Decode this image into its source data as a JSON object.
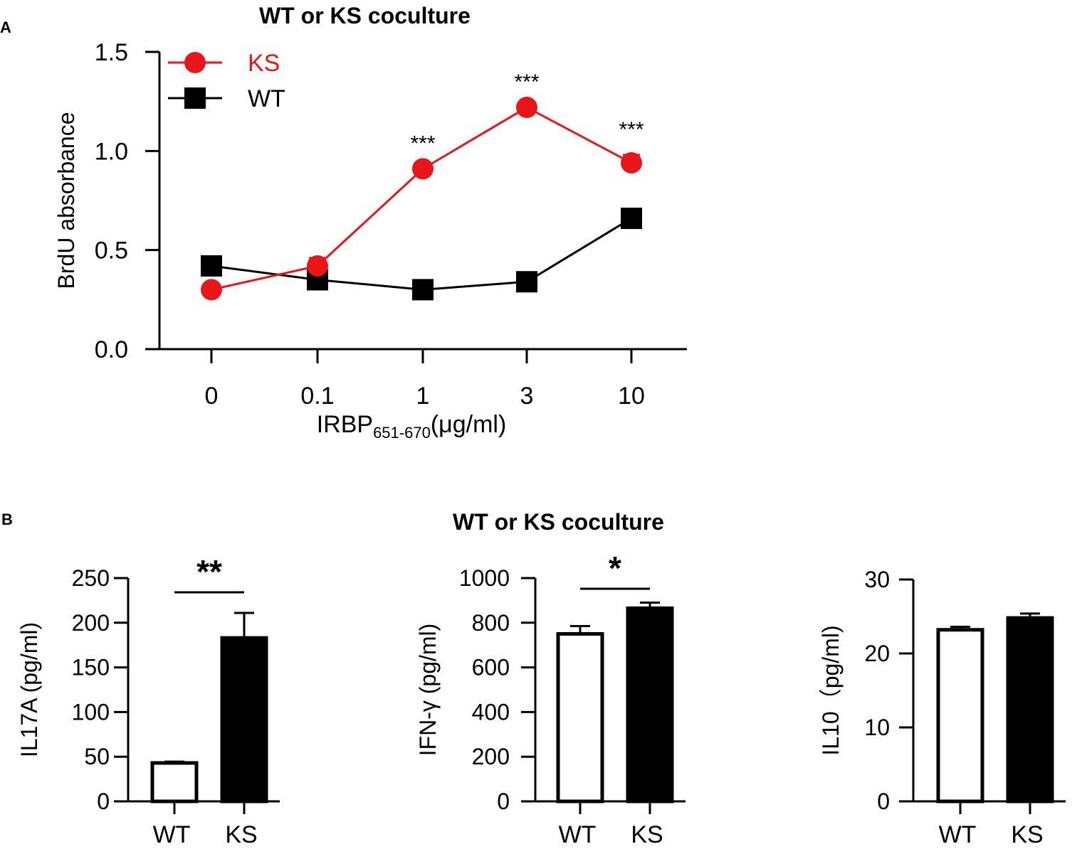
{
  "panels": {
    "a_letter": "A",
    "b_letter": "B",
    "a_title": "WT or KS coculture",
    "b_title": "WT or KS coculture"
  },
  "chart_data": [
    {
      "type": "line",
      "title": "WT or KS coculture",
      "xlabel_main": "IRBP",
      "xlabel_subscript": "651-670",
      "xlabel_unit": "(μg/ml)",
      "ylabel": "BrdU absorbance",
      "categories": [
        "0",
        "0.1",
        "1",
        "3",
        "10"
      ],
      "ylim": [
        0,
        1.5
      ],
      "yticks": [
        "0.0",
        "0.5",
        "1.0",
        "1.5"
      ],
      "ytick_values": [
        0,
        0.5,
        1.0,
        1.5
      ],
      "series": [
        {
          "name": "KS",
          "color": "#e8161b",
          "marker": "circle",
          "values": [
            0.3,
            0.42,
            0.91,
            1.22,
            0.94
          ],
          "errors": [
            0.0,
            0.04,
            0.0,
            0.0,
            0.04
          ]
        },
        {
          "name": "WT",
          "color": "#000000",
          "marker": "square",
          "values": [
            0.42,
            0.35,
            0.3,
            0.34,
            0.66
          ],
          "errors": [
            0.0,
            0.0,
            0.0,
            0.0,
            0.0
          ]
        }
      ],
      "annotations": [
        {
          "category": "1",
          "text": "***"
        },
        {
          "category": "3",
          "text": "***"
        },
        {
          "category": "10",
          "text": "***"
        }
      ],
      "legend": "top-left"
    },
    {
      "type": "bar",
      "ylabel": "IL17A (pg/ml)",
      "categories": [
        "WT",
        "KS"
      ],
      "values": [
        43,
        183
      ],
      "errors": [
        1.5,
        28
      ],
      "fills": [
        "#ffffff",
        "#000000"
      ],
      "ylim": [
        0,
        250
      ],
      "yticks": [
        "0",
        "50",
        "100",
        "150",
        "200",
        "250"
      ],
      "ytick_values": [
        0,
        50,
        100,
        150,
        200,
        250
      ],
      "significance": "**"
    },
    {
      "type": "bar",
      "ylabel": "IFN-γ (pg/ml)",
      "categories": [
        "WT",
        "KS"
      ],
      "values": [
        750,
        865
      ],
      "errors": [
        35,
        25
      ],
      "fills": [
        "#ffffff",
        "#000000"
      ],
      "ylim": [
        0,
        1000
      ],
      "yticks": [
        "0",
        "200",
        "400",
        "600",
        "800",
        "1000"
      ],
      "ytick_values": [
        0,
        200,
        400,
        600,
        800,
        1000
      ],
      "significance": "*"
    },
    {
      "type": "bar",
      "ylabel": "IL10（pg/ml)",
      "categories": [
        "WT",
        "KS"
      ],
      "values": [
        23.2,
        24.8
      ],
      "errors": [
        0.4,
        0.6
      ],
      "fills": [
        "#ffffff",
        "#000000"
      ],
      "ylim": [
        0,
        30
      ],
      "yticks": [
        "0",
        "10",
        "20",
        "30"
      ],
      "ytick_values": [
        0,
        10,
        20,
        30
      ],
      "significance": ""
    }
  ]
}
